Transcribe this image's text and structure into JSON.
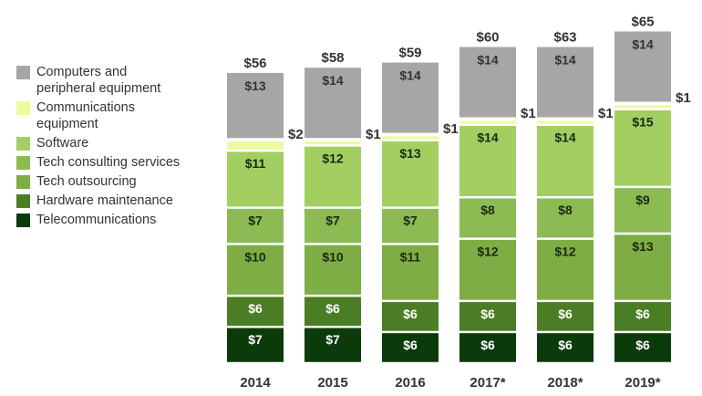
{
  "chart_data": {
    "type": "bar",
    "stacked": true,
    "title": "",
    "xlabel": "",
    "ylabel": "",
    "currency_prefix": "$",
    "categories": [
      "2014",
      "2015",
      "2016",
      "2017*",
      "2018*",
      "2019*"
    ],
    "totals": [
      56,
      58,
      59,
      60,
      63,
      65
    ],
    "series": [
      {
        "name": "Telecommunications",
        "color": "#0b3a0b",
        "label_color": "#ffffff",
        "values": [
          7,
          7,
          6,
          6,
          6,
          6
        ]
      },
      {
        "name": "Hardware maintenance",
        "color": "#4a7d24",
        "label_color": "#ffffff",
        "values": [
          6,
          6,
          6,
          6,
          6,
          6
        ]
      },
      {
        "name": "Tech outsourcing",
        "color": "#7fad45",
        "label_color": "#1a2a10",
        "values": [
          10,
          10,
          11,
          12,
          12,
          13
        ]
      },
      {
        "name": "Tech consulting services",
        "color": "#8dbb53",
        "label_color": "#1a2a10",
        "values": [
          7,
          7,
          7,
          8,
          8,
          9
        ]
      },
      {
        "name": "Software",
        "color": "#a3cf62",
        "label_color": "#1a2a10",
        "values": [
          11,
          12,
          13,
          14,
          14,
          15
        ]
      },
      {
        "name": "Communications equipment",
        "color": "#eefaa0",
        "label_color": "#333333",
        "values": [
          2,
          1,
          1,
          1,
          1,
          1
        ],
        "label_position": "side"
      },
      {
        "name": "Computers and peripheral equipment",
        "color": "#a6a6a6",
        "label_color": "#333333",
        "values": [
          13,
          14,
          14,
          14,
          14,
          14
        ],
        "label_position": "top"
      }
    ],
    "legend": {
      "position": "left",
      "entries": [
        {
          "label": "Computers and peripheral equipment",
          "color": "#a6a6a6"
        },
        {
          "label": "Communications equipment",
          "color": "#eefaa0"
        },
        {
          "label": "Software",
          "color": "#a3cf62"
        },
        {
          "label": "Tech consulting services",
          "color": "#8dbb53"
        },
        {
          "label": "Tech outsourcing",
          "color": "#7fad45"
        },
        {
          "label": "Hardware maintenance",
          "color": "#4a7d24"
        },
        {
          "label": "Telecommunications",
          "color": "#0b3a0b"
        }
      ]
    },
    "grid": false
  }
}
